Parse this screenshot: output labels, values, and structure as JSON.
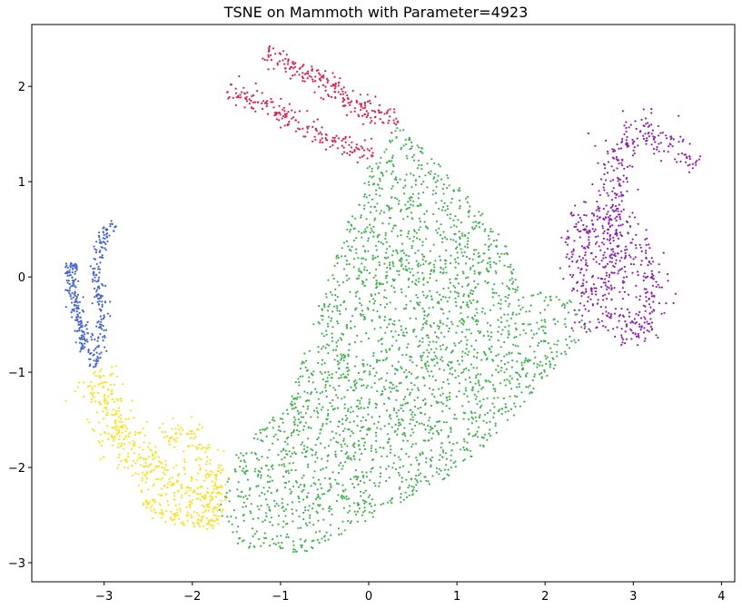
{
  "chart_data": {
    "type": "scatter",
    "title": "TSNE on Mammoth with Parameter=4923",
    "xlabel": "",
    "ylabel": "",
    "xlim": [
      -3.82,
      4.15
    ],
    "ylim": [
      -3.2,
      2.65
    ],
    "xticks": [
      -3,
      -2,
      -1,
      0,
      1,
      2,
      3,
      4
    ],
    "yticks": [
      -3,
      -2,
      -1,
      0,
      1,
      2
    ],
    "xtick_labels": [
      "−3",
      "−2",
      "−1",
      "0",
      "1",
      "2",
      "3",
      "4"
    ],
    "ytick_labels": [
      "−3",
      "−2",
      "−1",
      "0",
      "1",
      "2"
    ],
    "grid": false,
    "legend": "none",
    "series": [
      {
        "color": "#3cb44b",
        "description": "large central body cluster",
        "outline": [
          [
            0.35,
            1.6
          ],
          [
            1.05,
            0.95
          ],
          [
            1.6,
            0.3
          ],
          [
            1.7,
            -0.1
          ],
          [
            2.3,
            -0.25
          ],
          [
            2.55,
            -0.6
          ],
          [
            2.2,
            -0.85
          ],
          [
            1.9,
            -1.2
          ],
          [
            1.3,
            -1.8
          ],
          [
            0.9,
            -2.1
          ],
          [
            0.3,
            -2.4
          ],
          [
            -0.7,
            -2.9
          ],
          [
            -1.45,
            -2.85
          ],
          [
            -1.7,
            -2.45
          ],
          [
            -1.5,
            -1.85
          ],
          [
            -0.9,
            -1.3
          ],
          [
            -0.6,
            -0.4
          ],
          [
            -0.3,
            0.4
          ],
          [
            -0.05,
            1.1
          ]
        ],
        "count": 2600
      },
      {
        "color": "#e6194b",
        "description": "upper-left pair of arms",
        "strokes": [
          {
            "path": [
              [
                -1.15,
                2.38
              ],
              [
                -0.75,
                2.15
              ],
              [
                -0.4,
                2.0
              ],
              [
                -0.1,
                1.78
              ],
              [
                0.35,
                1.62
              ]
            ],
            "width": 0.06,
            "count": 210
          },
          {
            "path": [
              [
                -1.6,
                1.96
              ],
              [
                -1.15,
                1.8
              ],
              [
                -0.65,
                1.55
              ],
              [
                -0.2,
                1.35
              ],
              [
                0.05,
                1.25
              ]
            ],
            "width": 0.06,
            "count": 180
          }
        ]
      },
      {
        "color": "#911eb4",
        "description": "right-side curled cluster",
        "strokes": [
          {
            "path": [
              [
                2.55,
                -0.6
              ],
              [
                2.45,
                -0.1
              ],
              [
                2.35,
                0.5
              ],
              [
                2.55,
                0.7
              ],
              [
                2.8,
                0.5
              ],
              [
                3.2,
                0.05
              ],
              [
                3.2,
                -0.5
              ],
              [
                3.0,
                -0.65
              ],
              [
                2.75,
                -0.25
              ],
              [
                2.75,
                0.3
              ],
              [
                2.85,
                0.95
              ],
              [
                2.75,
                1.25
              ],
              [
                2.9,
                1.5
              ],
              [
                3.25,
                1.55
              ],
              [
                3.55,
                1.35
              ],
              [
                3.75,
                1.15
              ]
            ],
            "width": 0.1,
            "count": 720
          }
        ]
      },
      {
        "color": "#4363d8",
        "description": "far-left pair of arms",
        "strokes": [
          {
            "path": [
              [
                -3.35,
                0.15
              ],
              [
                -3.38,
                -0.1
              ],
              [
                -3.3,
                -0.35
              ],
              [
                -3.25,
                -0.55
              ],
              [
                -3.2,
                -0.8
              ]
            ],
            "width": 0.04,
            "count": 170
          },
          {
            "path": [
              [
                -2.9,
                0.58
              ],
              [
                -3.05,
                0.32
              ],
              [
                -3.1,
                0.0
              ],
              [
                -3.0,
                -0.35
              ],
              [
                -3.05,
                -0.7
              ],
              [
                -3.12,
                -0.95
              ]
            ],
            "width": 0.04,
            "count": 180
          }
        ]
      },
      {
        "color": "#ffe119",
        "description": "lower-left arc",
        "strokes": [
          {
            "path": [
              [
                -3.12,
                -1.0
              ],
              [
                -2.95,
                -1.4
              ],
              [
                -2.75,
                -1.75
              ],
              [
                -2.5,
                -2.0
              ],
              [
                -2.2,
                -2.2
              ],
              [
                -1.9,
                -2.3
              ],
              [
                -1.65,
                -2.45
              ]
            ],
            "width": 0.12,
            "count": 420
          },
          {
            "path": [
              [
                -2.55,
                -2.35
              ],
              [
                -2.25,
                -2.5
              ],
              [
                -1.95,
                -2.55
              ],
              [
                -1.7,
                -2.55
              ]
            ],
            "width": 0.05,
            "count": 90
          },
          {
            "path": [
              [
                -2.3,
                -1.75
              ],
              [
                -2.1,
                -1.55
              ],
              [
                -1.95,
                -1.7
              ],
              [
                -1.8,
                -2.0
              ],
              [
                -1.7,
                -2.3
              ]
            ],
            "width": 0.07,
            "count": 110
          }
        ]
      }
    ]
  }
}
